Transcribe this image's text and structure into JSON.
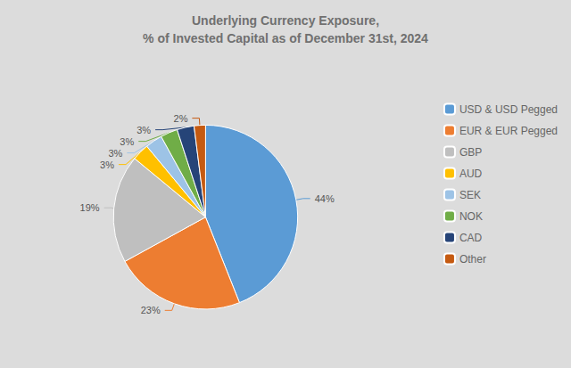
{
  "chart_data": {
    "type": "pie",
    "title": "Underlying Currency Exposure,\n% of Invested Capital as of December 31st, 2024",
    "categories": [
      "USD & USD Pegged",
      "EUR & EUR Pegged",
      "GBP",
      "AUD",
      "SEK",
      "NOK",
      "CAD",
      "Other"
    ],
    "values": [
      44,
      23,
      19,
      3,
      3,
      3,
      3,
      2
    ],
    "value_labels": [
      "44%",
      "23%",
      "19%",
      "3%",
      "3%",
      "3%",
      "3%",
      "2%"
    ],
    "colors": [
      "#5B9BD5",
      "#ED7D31",
      "#BFBFBF",
      "#FFC000",
      "#9DC3E6",
      "#70AD47",
      "#264478",
      "#C55A11"
    ],
    "legend": "right",
    "data_labels": true
  }
}
